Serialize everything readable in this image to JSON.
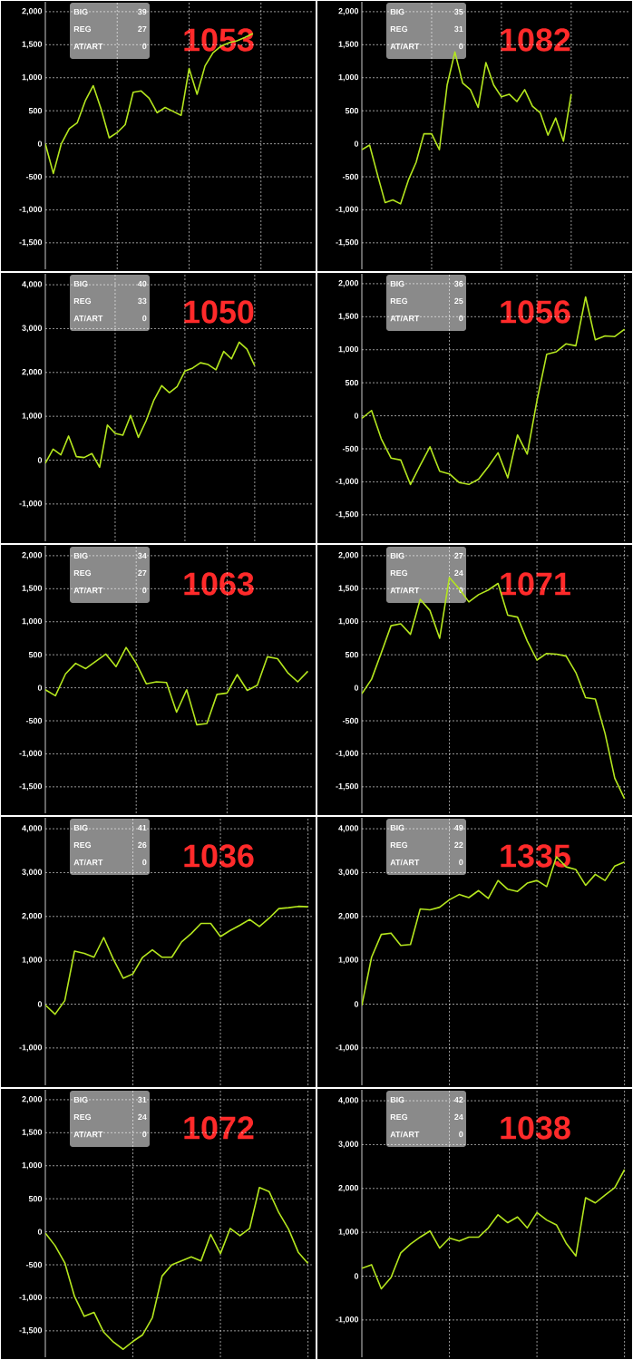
{
  "chart_data": [
    {
      "type": "line",
      "title": "1053",
      "annotations": [
        "BIG",
        "39",
        "REG",
        "27",
        "AT/ART",
        "0"
      ],
      "color": "#b4e61e",
      "grid": true,
      "tick_labels": "y",
      "categories": [
        null,
        null,
        null,
        null,
        null,
        null,
        null,
        null,
        null,
        null,
        null,
        null,
        null,
        null,
        null,
        null,
        null,
        null,
        null,
        null,
        null,
        null,
        null,
        null,
        null,
        null,
        null,
        null,
        null,
        null,
        null,
        null,
        null,
        null
      ],
      "values": [
        0,
        -450,
        0,
        230,
        320,
        650,
        880,
        520,
        90,
        170,
        290,
        780,
        800,
        690,
        470,
        550,
        490,
        430,
        1140,
        750,
        1180,
        1380,
        1480,
        1530,
        1560,
        1610,
        1670,
        null,
        null,
        null,
        null,
        null,
        null,
        null
      ],
      "ylim": [
        -1900,
        2150
      ],
      "yticks": [
        {
          "value": -1500,
          "label": "-1,500"
        },
        {
          "value": -1000,
          "label": "-1,000"
        },
        {
          "value": -500,
          "label": "-500"
        },
        {
          "value": 0,
          "label": "0"
        },
        {
          "value": 500,
          "label": "500"
        },
        {
          "value": 1000,
          "label": "1,000"
        },
        {
          "value": 1500,
          "label": "1,500"
        },
        {
          "value": 2000,
          "label": "2,000"
        }
      ]
    },
    {
      "type": "line",
      "title": "1082",
      "annotations": [
        "BIG",
        "35",
        "REG",
        "31",
        "AT/ART",
        "0"
      ],
      "color": "#b4e61e",
      "grid": true,
      "tick_labels": "y",
      "categories": [
        null,
        null,
        null,
        null,
        null,
        null,
        null,
        null,
        null,
        null,
        null,
        null,
        null,
        null,
        null,
        null,
        null,
        null,
        null,
        null,
        null,
        null,
        null,
        null,
        null,
        null,
        null,
        null,
        null,
        null,
        null,
        null,
        null,
        null,
        null
      ],
      "values": [
        -90,
        -20,
        -460,
        -890,
        -850,
        -910,
        -550,
        -280,
        150,
        150,
        -90,
        890,
        1390,
        920,
        820,
        550,
        1230,
        890,
        710,
        750,
        640,
        820,
        570,
        470,
        130,
        390,
        40,
        750,
        null,
        null,
        null,
        null,
        null,
        null,
        null
      ],
      "ylim": [
        -1900,
        2150
      ],
      "yticks": [
        {
          "value": -1500,
          "label": "-1,500"
        },
        {
          "value": -1000,
          "label": "-1,000"
        },
        {
          "value": -500,
          "label": "-500"
        },
        {
          "value": 0,
          "label": "0"
        },
        {
          "value": 500,
          "label": "500"
        },
        {
          "value": 1000,
          "label": "1,000"
        },
        {
          "value": 1500,
          "label": "1,500"
        },
        {
          "value": 2000,
          "label": "2,000"
        }
      ]
    },
    {
      "type": "line",
      "title": "1050",
      "annotations": [
        "BIG",
        "40",
        "REG",
        "33",
        "AT/ART",
        "0"
      ],
      "color": "#b4e61e",
      "grid": true,
      "tick_labels": "y",
      "categories": [
        null,
        null,
        null,
        null,
        null,
        null,
        null,
        null,
        null,
        null,
        null,
        null,
        null,
        null,
        null,
        null,
        null,
        null,
        null,
        null,
        null,
        null,
        null,
        null,
        null,
        null,
        null,
        null,
        null,
        null,
        null,
        null,
        null,
        null,
        null
      ],
      "values": [
        -70,
        250,
        120,
        550,
        80,
        60,
        150,
        -160,
        800,
        610,
        570,
        1020,
        520,
        900,
        1370,
        1700,
        1540,
        1680,
        2030,
        2100,
        2220,
        2180,
        2060,
        2480,
        2310,
        2690,
        2530,
        2150,
        null,
        null,
        null,
        null,
        null,
        null,
        null
      ],
      "ylim": [
        -1850,
        4250
      ],
      "yticks": [
        {
          "value": -1000,
          "label": "-1,000"
        },
        {
          "value": 0,
          "label": "0"
        },
        {
          "value": 1000,
          "label": "1,000"
        },
        {
          "value": 2000,
          "label": "2,000"
        },
        {
          "value": 3000,
          "label": "3,000"
        },
        {
          "value": 4000,
          "label": "4,000"
        }
      ]
    },
    {
      "type": "line",
      "title": "1056",
      "annotations": [
        "BIG",
        "36",
        "REG",
        "25",
        "AT/ART",
        "0"
      ],
      "color": "#b4e61e",
      "grid": true,
      "tick_labels": "y",
      "categories": [
        null,
        null,
        null,
        null,
        null,
        null,
        null,
        null,
        null,
        null,
        null,
        null,
        null,
        null,
        null,
        null,
        null,
        null,
        null,
        null,
        null,
        null,
        null,
        null,
        null,
        null,
        null,
        null
      ],
      "values": [
        -40,
        80,
        -350,
        -640,
        -670,
        -1040,
        -750,
        -470,
        -840,
        -880,
        -1010,
        -1040,
        -960,
        -770,
        -560,
        -940,
        -290,
        -580,
        230,
        930,
        970,
        1090,
        1060,
        1800,
        1150,
        1210,
        1200,
        1310
      ],
      "ylim": [
        -1900,
        2150
      ],
      "yticks": [
        {
          "value": -1500,
          "label": "-1,500"
        },
        {
          "value": -1000,
          "label": "-1,000"
        },
        {
          "value": -500,
          "label": "-500"
        },
        {
          "value": 0,
          "label": "0"
        },
        {
          "value": 500,
          "label": "500"
        },
        {
          "value": 1000,
          "label": "1,000"
        },
        {
          "value": 1500,
          "label": "1,500"
        },
        {
          "value": 2000,
          "label": "2,000"
        }
      ]
    },
    {
      "type": "line",
      "title": "1063",
      "annotations": [
        "BIG",
        "34",
        "REG",
        "27",
        "AT/ART",
        "0"
      ],
      "color": "#b4e61e",
      "grid": true,
      "tick_labels": "y",
      "categories": [
        null,
        null,
        null,
        null,
        null,
        null,
        null,
        null,
        null,
        null,
        null,
        null,
        null,
        null,
        null,
        null,
        null,
        null,
        null,
        null,
        null,
        null,
        null,
        null,
        null,
        null,
        null
      ],
      "values": [
        -30,
        -120,
        210,
        370,
        290,
        400,
        510,
        320,
        610,
        370,
        60,
        90,
        80,
        -370,
        -30,
        -560,
        -540,
        -100,
        -80,
        200,
        -40,
        40,
        470,
        440,
        230,
        90,
        250
      ],
      "ylim": [
        -1900,
        2150
      ],
      "yticks": [
        {
          "value": -1500,
          "label": "-1,500"
        },
        {
          "value": -1000,
          "label": "-1,000"
        },
        {
          "value": -500,
          "label": "-500"
        },
        {
          "value": 0,
          "label": "0"
        },
        {
          "value": 500,
          "label": "500"
        },
        {
          "value": 1000,
          "label": "1,000"
        },
        {
          "value": 1500,
          "label": "1,500"
        },
        {
          "value": 2000,
          "label": "2,000"
        }
      ]
    },
    {
      "type": "line",
      "title": "1071",
      "annotations": [
        "BIG",
        "27",
        "REG",
        "24",
        "AT/ART",
        "0"
      ],
      "color": "#b4e61e",
      "grid": true,
      "tick_labels": "y",
      "categories": [
        null,
        null,
        null,
        null,
        null,
        null,
        null,
        null,
        null,
        null,
        null,
        null,
        null,
        null,
        null,
        null,
        null,
        null,
        null,
        null,
        null,
        null,
        null,
        null,
        null,
        null,
        null,
        null
      ],
      "values": [
        -90,
        130,
        530,
        940,
        970,
        810,
        1340,
        1170,
        750,
        1670,
        1500,
        1300,
        1410,
        1480,
        1580,
        1100,
        1070,
        710,
        420,
        520,
        510,
        480,
        230,
        -150,
        -170,
        -690,
        -1370,
        -1680
      ],
      "ylim": [
        -1900,
        2150
      ],
      "yticks": [
        {
          "value": -1500,
          "label": "-1,500"
        },
        {
          "value": -1000,
          "label": "-1,000"
        },
        {
          "value": -500,
          "label": "-500"
        },
        {
          "value": 0,
          "label": "0"
        },
        {
          "value": 500,
          "label": "500"
        },
        {
          "value": 1000,
          "label": "1,000"
        },
        {
          "value": 1500,
          "label": "1,500"
        },
        {
          "value": 2000,
          "label": "2,000"
        }
      ]
    },
    {
      "type": "line",
      "title": "1036",
      "annotations": [
        "BIG",
        "41",
        "REG",
        "26",
        "AT/ART",
        "0"
      ],
      "color": "#b4e61e",
      "grid": true,
      "tick_labels": "y",
      "categories": [
        null,
        null,
        null,
        null,
        null,
        null,
        null,
        null,
        null,
        null,
        null,
        null,
        null,
        null,
        null,
        null,
        null,
        null,
        null,
        null,
        null,
        null,
        null,
        null,
        null,
        null,
        null,
        null
      ],
      "values": [
        -20,
        -230,
        80,
        1210,
        1160,
        1070,
        1520,
        1020,
        590,
        690,
        1070,
        1240,
        1070,
        1070,
        1420,
        1610,
        1840,
        1840,
        1540,
        1680,
        1800,
        1930,
        1770,
        1960,
        2180,
        2200,
        2230,
        2220
      ],
      "ylim": [
        -1850,
        4250
      ],
      "yticks": [
        {
          "value": -1000,
          "label": "-1,000"
        },
        {
          "value": 0,
          "label": "0"
        },
        {
          "value": 1000,
          "label": "1,000"
        },
        {
          "value": 2000,
          "label": "2,000"
        },
        {
          "value": 3000,
          "label": "3,000"
        },
        {
          "value": 4000,
          "label": "4,000"
        }
      ]
    },
    {
      "type": "line",
      "title": "1335",
      "annotations": [
        "BIG",
        "49",
        "REG",
        "22",
        "AT/ART",
        "0"
      ],
      "color": "#b4e61e",
      "grid": true,
      "tick_labels": "y",
      "categories": [
        null,
        null,
        null,
        null,
        null,
        null,
        null,
        null,
        null,
        null,
        null,
        null,
        null,
        null,
        null,
        null,
        null,
        null,
        null,
        null,
        null,
        null,
        null,
        null,
        null,
        null,
        null,
        null
      ],
      "values": [
        -30,
        1070,
        1590,
        1620,
        1340,
        1360,
        2170,
        2150,
        2210,
        2380,
        2500,
        2430,
        2590,
        2410,
        2820,
        2620,
        2570,
        2760,
        2820,
        2680,
        3360,
        3130,
        3070,
        2710,
        2960,
        2820,
        3150,
        3240
      ],
      "ylim": [
        -1850,
        4250
      ],
      "yticks": [
        {
          "value": -1000,
          "label": "-1,000"
        },
        {
          "value": 0,
          "label": "0"
        },
        {
          "value": 1000,
          "label": "1,000"
        },
        {
          "value": 2000,
          "label": "2,000"
        },
        {
          "value": 3000,
          "label": "3,000"
        },
        {
          "value": 4000,
          "label": "4,000"
        }
      ]
    },
    {
      "type": "line",
      "title": "1072",
      "annotations": [
        "BIG",
        "31",
        "REG",
        "24",
        "AT/ART",
        "0"
      ],
      "color": "#b4e61e",
      "grid": true,
      "tick_labels": "y",
      "categories": [
        null,
        null,
        null,
        null,
        null,
        null,
        null,
        null,
        null,
        null,
        null,
        null,
        null,
        null,
        null,
        null,
        null,
        null,
        null,
        null,
        null,
        null,
        null,
        null,
        null,
        null,
        null,
        null
      ],
      "values": [
        -20,
        -210,
        -470,
        -980,
        -1280,
        -1220,
        -1520,
        -1670,
        -1780,
        -1660,
        -1560,
        -1300,
        -670,
        -500,
        -440,
        -380,
        -440,
        -40,
        -330,
        50,
        -60,
        50,
        670,
        610,
        290,
        40,
        -310,
        -480
      ],
      "ylim": [
        -1900,
        2150
      ],
      "yticks": [
        {
          "value": -1500,
          "label": "-1,500"
        },
        {
          "value": -1000,
          "label": "-1,000"
        },
        {
          "value": -500,
          "label": "-500"
        },
        {
          "value": 0,
          "label": "0"
        },
        {
          "value": 500,
          "label": "500"
        },
        {
          "value": 1000,
          "label": "1,000"
        },
        {
          "value": 1500,
          "label": "1,500"
        },
        {
          "value": 2000,
          "label": "2,000"
        }
      ]
    },
    {
      "type": "line",
      "title": "1038",
      "annotations": [
        "BIG",
        "42",
        "REG",
        "24",
        "AT/ART",
        "0"
      ],
      "color": "#b4e61e",
      "grid": true,
      "tick_labels": "y",
      "categories": [
        null,
        null,
        null,
        null,
        null,
        null,
        null,
        null,
        null,
        null,
        null,
        null,
        null,
        null,
        null,
        null,
        null,
        null,
        null,
        null,
        null,
        null,
        null,
        null,
        null,
        null,
        null,
        null
      ],
      "values": [
        180,
        260,
        -290,
        -30,
        530,
        730,
        890,
        1030,
        640,
        870,
        800,
        890,
        890,
        1100,
        1400,
        1220,
        1350,
        1100,
        1450,
        1280,
        1170,
        750,
        460,
        1790,
        1670,
        1850,
        2020,
        2430
      ],
      "ylim": [
        -1850,
        4250
      ],
      "yticks": [
        {
          "value": -1000,
          "label": "-1,000"
        },
        {
          "value": 0,
          "label": "0"
        },
        {
          "value": 1000,
          "label": "1,000"
        },
        {
          "value": 2000,
          "label": "2,000"
        },
        {
          "value": 3000,
          "label": "3,000"
        },
        {
          "value": 4000,
          "label": "4,000"
        }
      ]
    }
  ]
}
